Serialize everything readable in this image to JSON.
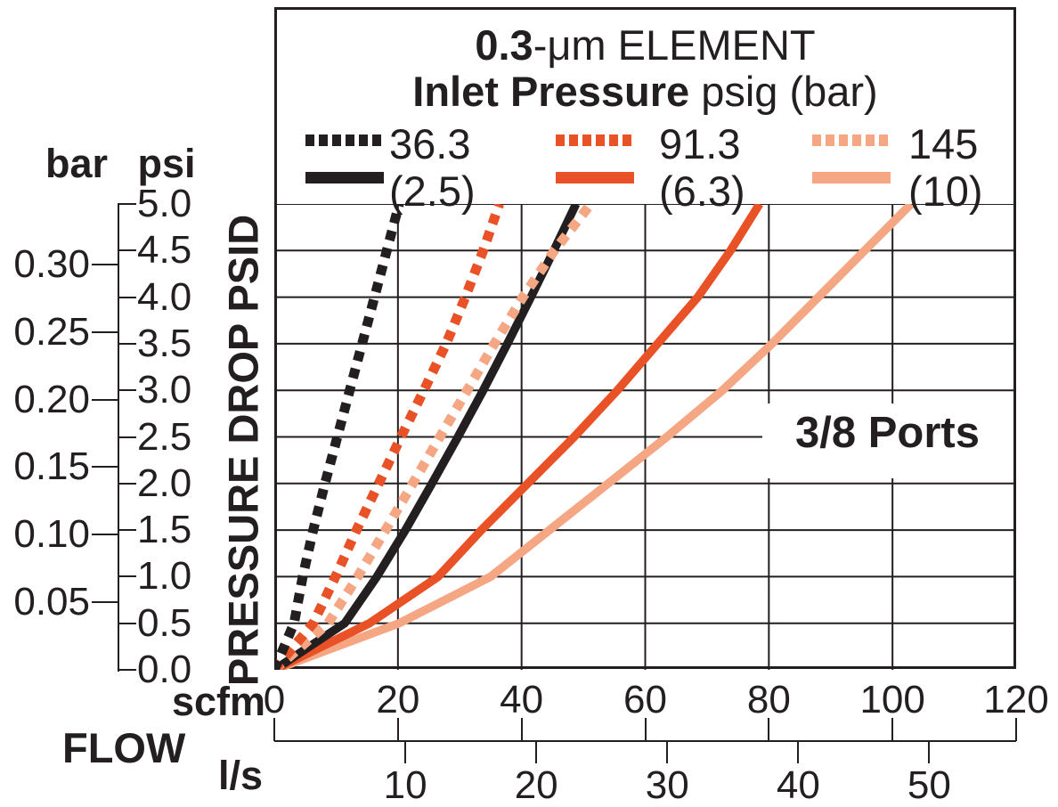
{
  "title": {
    "line1_bold": "0.3",
    "line1_rest": "-μm ELEMENT",
    "line2_bold": "Inlet Pressure",
    "line2_rest": " psig (bar)"
  },
  "ports_label": "3/8 Ports",
  "colors": {
    "black": "#231F20",
    "orange": "#E95226",
    "salmon": "#F5A683",
    "grid": "#231F20",
    "background": "#FFFFFF"
  },
  "legend": {
    "items": [
      {
        "psig_label": "36.3",
        "bar_label": "(2.5)",
        "color": "#231F20"
      },
      {
        "psig_label": "91.3",
        "bar_label": "(6.3)",
        "color": "#E95226"
      },
      {
        "psig_label": "145",
        "bar_label": "(10)",
        "color": "#F5A683"
      }
    ]
  },
  "axis_left": {
    "bar_head": "bar",
    "psi_head": "psi",
    "axis_title": "PRESSURE DROP PSID",
    "psi_ticks": [
      {
        "label": "0.0",
        "psi": 0.0
      },
      {
        "label": "0.5",
        "psi": 0.5
      },
      {
        "label": "1.0",
        "psi": 1.0
      },
      {
        "label": "1.5",
        "psi": 1.5
      },
      {
        "label": "2.0",
        "psi": 2.0
      },
      {
        "label": "2.5",
        "psi": 2.5
      },
      {
        "label": "3.0",
        "psi": 3.0
      },
      {
        "label": "3.5",
        "psi": 3.5
      },
      {
        "label": "4.0",
        "psi": 4.0
      },
      {
        "label": "4.5",
        "psi": 4.5
      },
      {
        "label": "5.0",
        "psi": 5.0
      }
    ],
    "bar_ticks": [
      {
        "label": "0.05",
        "psi": 0.725
      },
      {
        "label": "0.10",
        "psi": 1.45
      },
      {
        "label": "0.15",
        "psi": 2.176
      },
      {
        "label": "0.20",
        "psi": 2.901
      },
      {
        "label": "0.25",
        "psi": 3.626
      },
      {
        "label": "0.30",
        "psi": 4.351
      }
    ]
  },
  "axis_bottom": {
    "flow_label": "FLOW",
    "scfm_head": "scfm",
    "ls_head": "l/s",
    "scfm_ticks": [
      {
        "label": "0",
        "scfm": 0
      },
      {
        "label": "20",
        "scfm": 20
      },
      {
        "label": "40",
        "scfm": 40
      },
      {
        "label": "60",
        "scfm": 60
      },
      {
        "label": "80",
        "scfm": 80
      },
      {
        "label": "100",
        "scfm": 100
      },
      {
        "label": "120",
        "scfm": 120
      }
    ],
    "ls_ticks": [
      {
        "label": "10",
        "scfm": 21.19
      },
      {
        "label": "20",
        "scfm": 42.38
      },
      {
        "label": "30",
        "scfm": 63.57
      },
      {
        "label": "40",
        "scfm": 84.76
      },
      {
        "label": "50",
        "scfm": 105.94
      }
    ]
  },
  "chart_data": {
    "type": "line",
    "title": "0.3-μm ELEMENT Inlet Pressure psig (bar)",
    "xlabel": "FLOW (scfm / l/s)",
    "ylabel": "PRESSURE DROP PSID",
    "xlim_scfm": [
      0,
      120
    ],
    "ylim_psid": [
      0,
      5
    ],
    "grid": {
      "x_step_scfm": 20,
      "y_step_psid": 0.5
    },
    "series": [
      {
        "name": "Inlet 36.3 psig",
        "legend": "36.3",
        "style": "dotted",
        "color": "#231F20",
        "points_scfm_psid": [
          [
            0,
            0
          ],
          [
            3.2,
            0.5
          ],
          [
            4.6,
            1.0
          ],
          [
            6.3,
            1.5
          ],
          [
            8.2,
            2.0
          ],
          [
            10.2,
            2.5
          ],
          [
            12.2,
            3.0
          ],
          [
            14.2,
            3.5
          ],
          [
            16.2,
            4.0
          ],
          [
            18.2,
            4.5
          ],
          [
            20.2,
            5.0
          ]
        ]
      },
      {
        "name": "Inlet 91.3 psig",
        "legend": "91.3",
        "style": "dotted",
        "color": "#E95226",
        "points_scfm_psid": [
          [
            0,
            0
          ],
          [
            6.3,
            0.5
          ],
          [
            9.9,
            1.0
          ],
          [
            13.3,
            1.5
          ],
          [
            16.9,
            2.0
          ],
          [
            20.5,
            2.5
          ],
          [
            24.2,
            3.0
          ],
          [
            27.8,
            3.5
          ],
          [
            30.9,
            4.0
          ],
          [
            33.8,
            4.5
          ],
          [
            36.4,
            5.0
          ]
        ]
      },
      {
        "name": "Inlet 145 psig",
        "legend": "145",
        "style": "dotted",
        "color": "#F5A683",
        "points_scfm_psid": [
          [
            0,
            0
          ],
          [
            8.7,
            0.5
          ],
          [
            13.5,
            1.0
          ],
          [
            18.0,
            1.5
          ],
          [
            22.4,
            2.0
          ],
          [
            26.8,
            2.5
          ],
          [
            31.2,
            3.0
          ],
          [
            35.6,
            3.5
          ],
          [
            40.2,
            4.0
          ],
          [
            45.3,
            4.5
          ],
          [
            51.2,
            5.0
          ]
        ]
      },
      {
        "name": "Inlet 2.5 bar",
        "legend": "(2.5)",
        "style": "solid",
        "color": "#231F20",
        "points_scfm_psid": [
          [
            0,
            0
          ],
          [
            11.4,
            0.5
          ],
          [
            16.6,
            1.0
          ],
          [
            21.2,
            1.5
          ],
          [
            25.5,
            2.0
          ],
          [
            29.7,
            2.5
          ],
          [
            33.8,
            3.0
          ],
          [
            37.7,
            3.5
          ],
          [
            41.5,
            4.0
          ],
          [
            45.2,
            4.5
          ],
          [
            48.8,
            5.0
          ]
        ]
      },
      {
        "name": "Inlet 6.3 bar",
        "legend": "(6.3)",
        "style": "solid",
        "color": "#E95226",
        "points_scfm_psid": [
          [
            0,
            0
          ],
          [
            15.4,
            0.5
          ],
          [
            26.5,
            1.0
          ],
          [
            33.5,
            1.5
          ],
          [
            41.0,
            2.0
          ],
          [
            48.5,
            2.5
          ],
          [
            55.5,
            3.0
          ],
          [
            62.0,
            3.5
          ],
          [
            68.5,
            4.0
          ],
          [
            73.8,
            4.5
          ],
          [
            78.5,
            5.0
          ]
        ]
      },
      {
        "name": "Inlet 10 bar",
        "legend": "(10)",
        "style": "solid",
        "color": "#F5A683",
        "points_scfm_psid": [
          [
            0,
            0
          ],
          [
            20.2,
            0.5
          ],
          [
            35.0,
            1.0
          ],
          [
            44.5,
            1.5
          ],
          [
            54.0,
            2.0
          ],
          [
            63.5,
            2.5
          ],
          [
            72.5,
            3.0
          ],
          [
            80.5,
            3.5
          ],
          [
            88.0,
            4.0
          ],
          [
            95.5,
            4.5
          ],
          [
            103.0,
            5.0
          ]
        ]
      }
    ]
  }
}
